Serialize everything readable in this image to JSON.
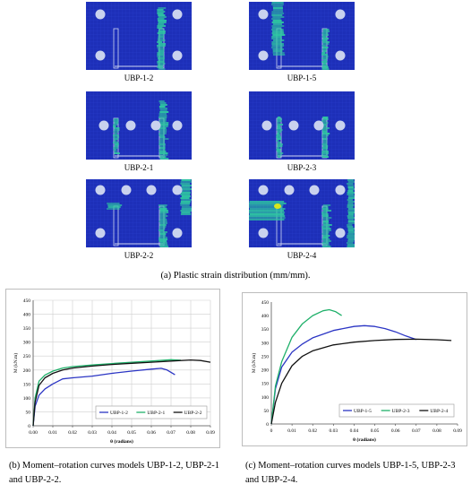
{
  "figure_a": {
    "panel_labels": [
      "UBP-1-2",
      "UBP-1-5",
      "UBP-2-1",
      "UBP-2-3",
      "UBP-2-2",
      "UBP-2-4"
    ],
    "caption": "(a) Plastic strain distribution (mm/mm).",
    "colors": {
      "background": "#1d2fb8",
      "low_strain": "#1fa6c8",
      "mid_strain": "#2ec9a0",
      "peak_strain": "#d9e61c",
      "bolt": "#c9d2ee"
    }
  },
  "caption_b": "(b) Moment–rotation curves models UBP-1-2, UBP-2-1 and UBP-2-2.",
  "caption_c": "(c) Moment–rotation curves models UBP-1-5, UBP-2-3 and UBP-2-4.",
  "chart_data": [
    {
      "type": "line",
      "ylabel": "M (kN.m)",
      "xlabel": "θ (radians)",
      "xlim": [
        0,
        0.09
      ],
      "ylim": [
        0,
        450
      ],
      "xticks": [
        "0.00",
        "0.01",
        "0.02",
        "0.03",
        "0.04",
        "0.05",
        "0.06",
        "0.07",
        "0.08",
        "0.09"
      ],
      "yticks": [
        "0",
        "50",
        "100",
        "150",
        "200",
        "250",
        "300",
        "350",
        "400",
        "450"
      ],
      "grid": true,
      "legend": "bottom-right",
      "series": [
        {
          "name": "UBP-1-2",
          "color": "#2b35c4",
          "x": [
            0,
            0.001,
            0.003,
            0.006,
            0.01,
            0.015,
            0.02,
            0.03,
            0.04,
            0.05,
            0.06,
            0.065,
            0.068,
            0.072
          ],
          "y": [
            0,
            70,
            110,
            132,
            150,
            168,
            172,
            178,
            188,
            196,
            203,
            206,
            200,
            183
          ]
        },
        {
          "name": "UBP-2-1",
          "color": "#1fb06a",
          "x": [
            0,
            0.001,
            0.003,
            0.006,
            0.01,
            0.015,
            0.02,
            0.03,
            0.04,
            0.05,
            0.06,
            0.07,
            0.075
          ],
          "y": [
            0,
            100,
            160,
            182,
            196,
            207,
            212,
            218,
            223,
            228,
            232,
            237,
            235
          ]
        },
        {
          "name": "UBP-2-2",
          "color": "#111111",
          "x": [
            0,
            0.001,
            0.003,
            0.006,
            0.01,
            0.015,
            0.02,
            0.03,
            0.04,
            0.05,
            0.06,
            0.07,
            0.08,
            0.085,
            0.09
          ],
          "y": [
            0,
            85,
            145,
            172,
            188,
            200,
            207,
            214,
            220,
            224,
            228,
            232,
            236,
            234,
            228
          ]
        }
      ]
    },
    {
      "type": "line",
      "ylabel": "M (kN.m)",
      "xlabel": "θ (radians)",
      "xlim": [
        0,
        0.09
      ],
      "ylim": [
        0,
        450
      ],
      "xticks": [
        "0",
        "0.01",
        "0.02",
        "0.03",
        "0.04",
        "0.05",
        "0.06",
        "0.07",
        "0.08",
        "0.09"
      ],
      "yticks": [
        "0",
        "50",
        "100",
        "150",
        "200",
        "250",
        "300",
        "350",
        "400",
        "450"
      ],
      "grid": false,
      "legend": "bottom-right",
      "series": [
        {
          "name": "UBP-1-5",
          "color": "#2b35c4",
          "x": [
            0,
            0.002,
            0.005,
            0.01,
            0.015,
            0.02,
            0.03,
            0.04,
            0.045,
            0.05,
            0.055,
            0.06,
            0.065,
            0.07
          ],
          "y": [
            0,
            130,
            210,
            265,
            295,
            318,
            345,
            360,
            363,
            360,
            352,
            340,
            325,
            312
          ]
        },
        {
          "name": "UBP-2-3",
          "color": "#1fb06a",
          "x": [
            0,
            0.002,
            0.005,
            0.01,
            0.015,
            0.02,
            0.025,
            0.028,
            0.031,
            0.034
          ],
          "y": [
            0,
            140,
            230,
            320,
            370,
            400,
            418,
            422,
            415,
            400
          ]
        },
        {
          "name": "UBP-2-4",
          "color": "#111111",
          "x": [
            0,
            0.002,
            0.005,
            0.01,
            0.015,
            0.02,
            0.03,
            0.04,
            0.05,
            0.06,
            0.07,
            0.08,
            0.087
          ],
          "y": [
            0,
            80,
            150,
            215,
            250,
            270,
            292,
            302,
            308,
            312,
            313,
            311,
            308
          ]
        }
      ]
    }
  ]
}
